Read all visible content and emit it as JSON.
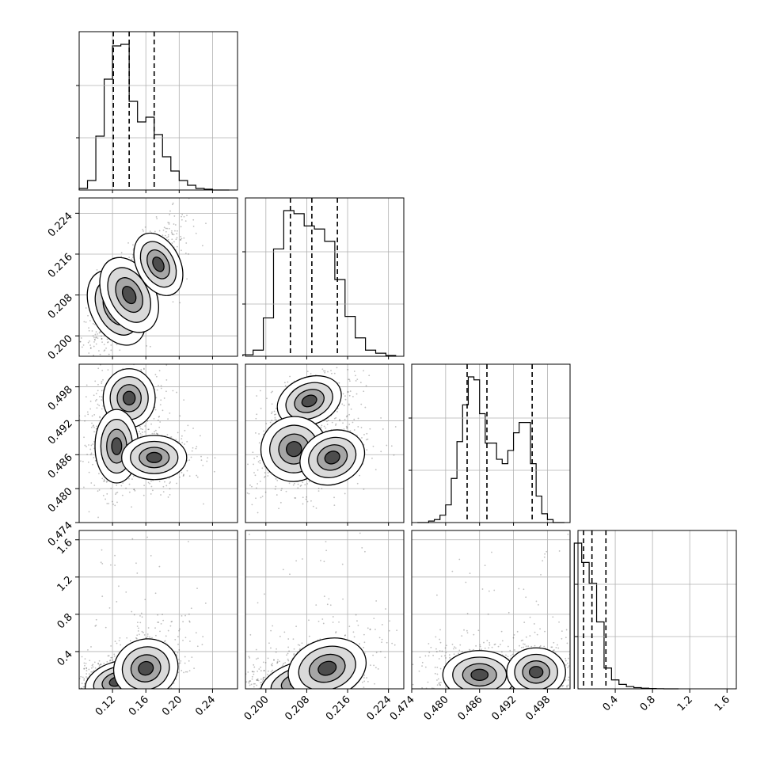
{
  "chart_data": {
    "type": "corner",
    "grid": true,
    "params": [
      {
        "range": [
          0.08,
          0.27
        ],
        "ticks": [
          "0.12",
          "0.16",
          "0.20",
          "0.24"
        ],
        "quantiles": [
          0.121,
          0.14,
          0.17
        ],
        "hist_bins": [
          0.085,
          0.095,
          0.105,
          0.115,
          0.125,
          0.135,
          0.145,
          0.155,
          0.165,
          0.175,
          0.185,
          0.195,
          0.205,
          0.215,
          0.225,
          0.235,
          0.245,
          0.255
        ],
        "hist_vals": [
          0.01,
          0.06,
          0.34,
          0.7,
          0.91,
          0.92,
          0.56,
          0.43,
          0.46,
          0.35,
          0.21,
          0.12,
          0.06,
          0.03,
          0.01,
          0.005,
          0.0,
          0.0
        ]
      },
      {
        "range": [
          0.196,
          0.227
        ],
        "ticks": [
          "0.200",
          "0.208",
          "0.216",
          "0.224"
        ],
        "quantiles": [
          0.2048,
          0.209,
          0.214
        ],
        "hist_bins": [
          0.1965,
          0.1985,
          0.2005,
          0.2025,
          0.2045,
          0.2065,
          0.2085,
          0.2105,
          0.2125,
          0.2145,
          0.2165,
          0.2185,
          0.2205,
          0.2225,
          0.2245
        ],
        "hist_vals": [
          0.01,
          0.04,
          0.25,
          0.7,
          0.95,
          0.93,
          0.85,
          0.83,
          0.75,
          0.5,
          0.26,
          0.12,
          0.04,
          0.02,
          0.005
        ],
        "hist_edge": 0.1955
      },
      {
        "range": [
          0.474,
          0.502
        ],
        "ticks": [
          "0.474",
          "0.480",
          "0.486",
          "0.492",
          "0.498"
        ],
        "quantiles": [
          0.4838,
          0.4873,
          0.4953
        ],
        "hist_bins": [
          0.4755,
          0.4765,
          0.4775,
          0.4785,
          0.4795,
          0.4805,
          0.4815,
          0.4825,
          0.4835,
          0.4845,
          0.4855,
          0.4865,
          0.4875,
          0.4885,
          0.4895,
          0.4905,
          0.4915,
          0.4925,
          0.4935,
          0.4945,
          0.4955,
          0.4965,
          0.4975,
          0.4985,
          0.4995,
          0.5005
        ],
        "hist_vals": [
          0.0,
          0.0,
          0.01,
          0.02,
          0.05,
          0.12,
          0.3,
          0.55,
          0.8,
          0.99,
          0.97,
          0.74,
          0.54,
          0.54,
          0.43,
          0.4,
          0.49,
          0.61,
          0.68,
          0.68,
          0.4,
          0.18,
          0.06,
          0.02,
          0.0,
          0.0
        ]
      },
      {
        "range": [
          0.0,
          1.7
        ],
        "ticks": [
          "0.4",
          "0.8",
          "1.2",
          "1.6"
        ],
        "quantiles": [
          0.06,
          0.15,
          0.3
        ],
        "hist_bins": [
          0.0,
          0.08,
          0.16,
          0.24,
          0.32,
          0.4,
          0.48,
          0.56,
          0.64,
          0.72,
          0.8,
          0.88,
          0.96,
          1.04
        ],
        "hist_vals": [
          0.98,
          0.85,
          0.71,
          0.45,
          0.14,
          0.06,
          0.03,
          0.015,
          0.008,
          0.004,
          0.002,
          0.001,
          0.0,
          0.0
        ]
      }
    ],
    "pairs": [
      {
        "row": 1,
        "col": 0,
        "centers": [
          [
            0.125,
            0.2055
          ],
          [
            0.14,
            0.208
          ],
          [
            0.175,
            0.214
          ]
        ],
        "spread": [
          [
            0.012,
            0.003
          ],
          [
            0.012,
            0.003
          ],
          [
            0.01,
            0.0025
          ]
        ],
        "corr": 0.6
      },
      {
        "row": 2,
        "col": 0,
        "centers": [
          [
            0.14,
            0.496
          ],
          [
            0.125,
            0.4875
          ],
          [
            0.17,
            0.4855
          ]
        ],
        "spread": [
          [
            0.012,
            0.002
          ],
          [
            0.01,
            0.0025
          ],
          [
            0.015,
            0.0015
          ]
        ],
        "corr": 0.0
      },
      {
        "row": 2,
        "col": 1,
        "centers": [
          [
            0.2085,
            0.4955
          ],
          [
            0.2055,
            0.487
          ],
          [
            0.213,
            0.4855
          ]
        ],
        "spread": [
          [
            0.0025,
            0.0016
          ],
          [
            0.0025,
            0.0022
          ],
          [
            0.0025,
            0.0018
          ]
        ],
        "corr": 0.5
      },
      {
        "row": 3,
        "col": 0,
        "centers": [
          [
            0.125,
            0.08
          ],
          [
            0.16,
            0.22
          ]
        ],
        "spread": [
          [
            0.015,
            0.08
          ],
          [
            0.015,
            0.12
          ]
        ],
        "corr": 0.4
      },
      {
        "row": 3,
        "col": 1,
        "centers": [
          [
            0.2065,
            0.08
          ],
          [
            0.212,
            0.22
          ]
        ],
        "spread": [
          [
            0.003,
            0.08
          ],
          [
            0.003,
            0.12
          ]
        ],
        "corr": 0.4
      },
      {
        "row": 3,
        "col": 2,
        "centers": [
          [
            0.486,
            0.15
          ],
          [
            0.496,
            0.18
          ]
        ],
        "spread": [
          [
            0.0025,
            0.1
          ],
          [
            0.002,
            0.1
          ]
        ],
        "corr": 0.0
      }
    ]
  }
}
